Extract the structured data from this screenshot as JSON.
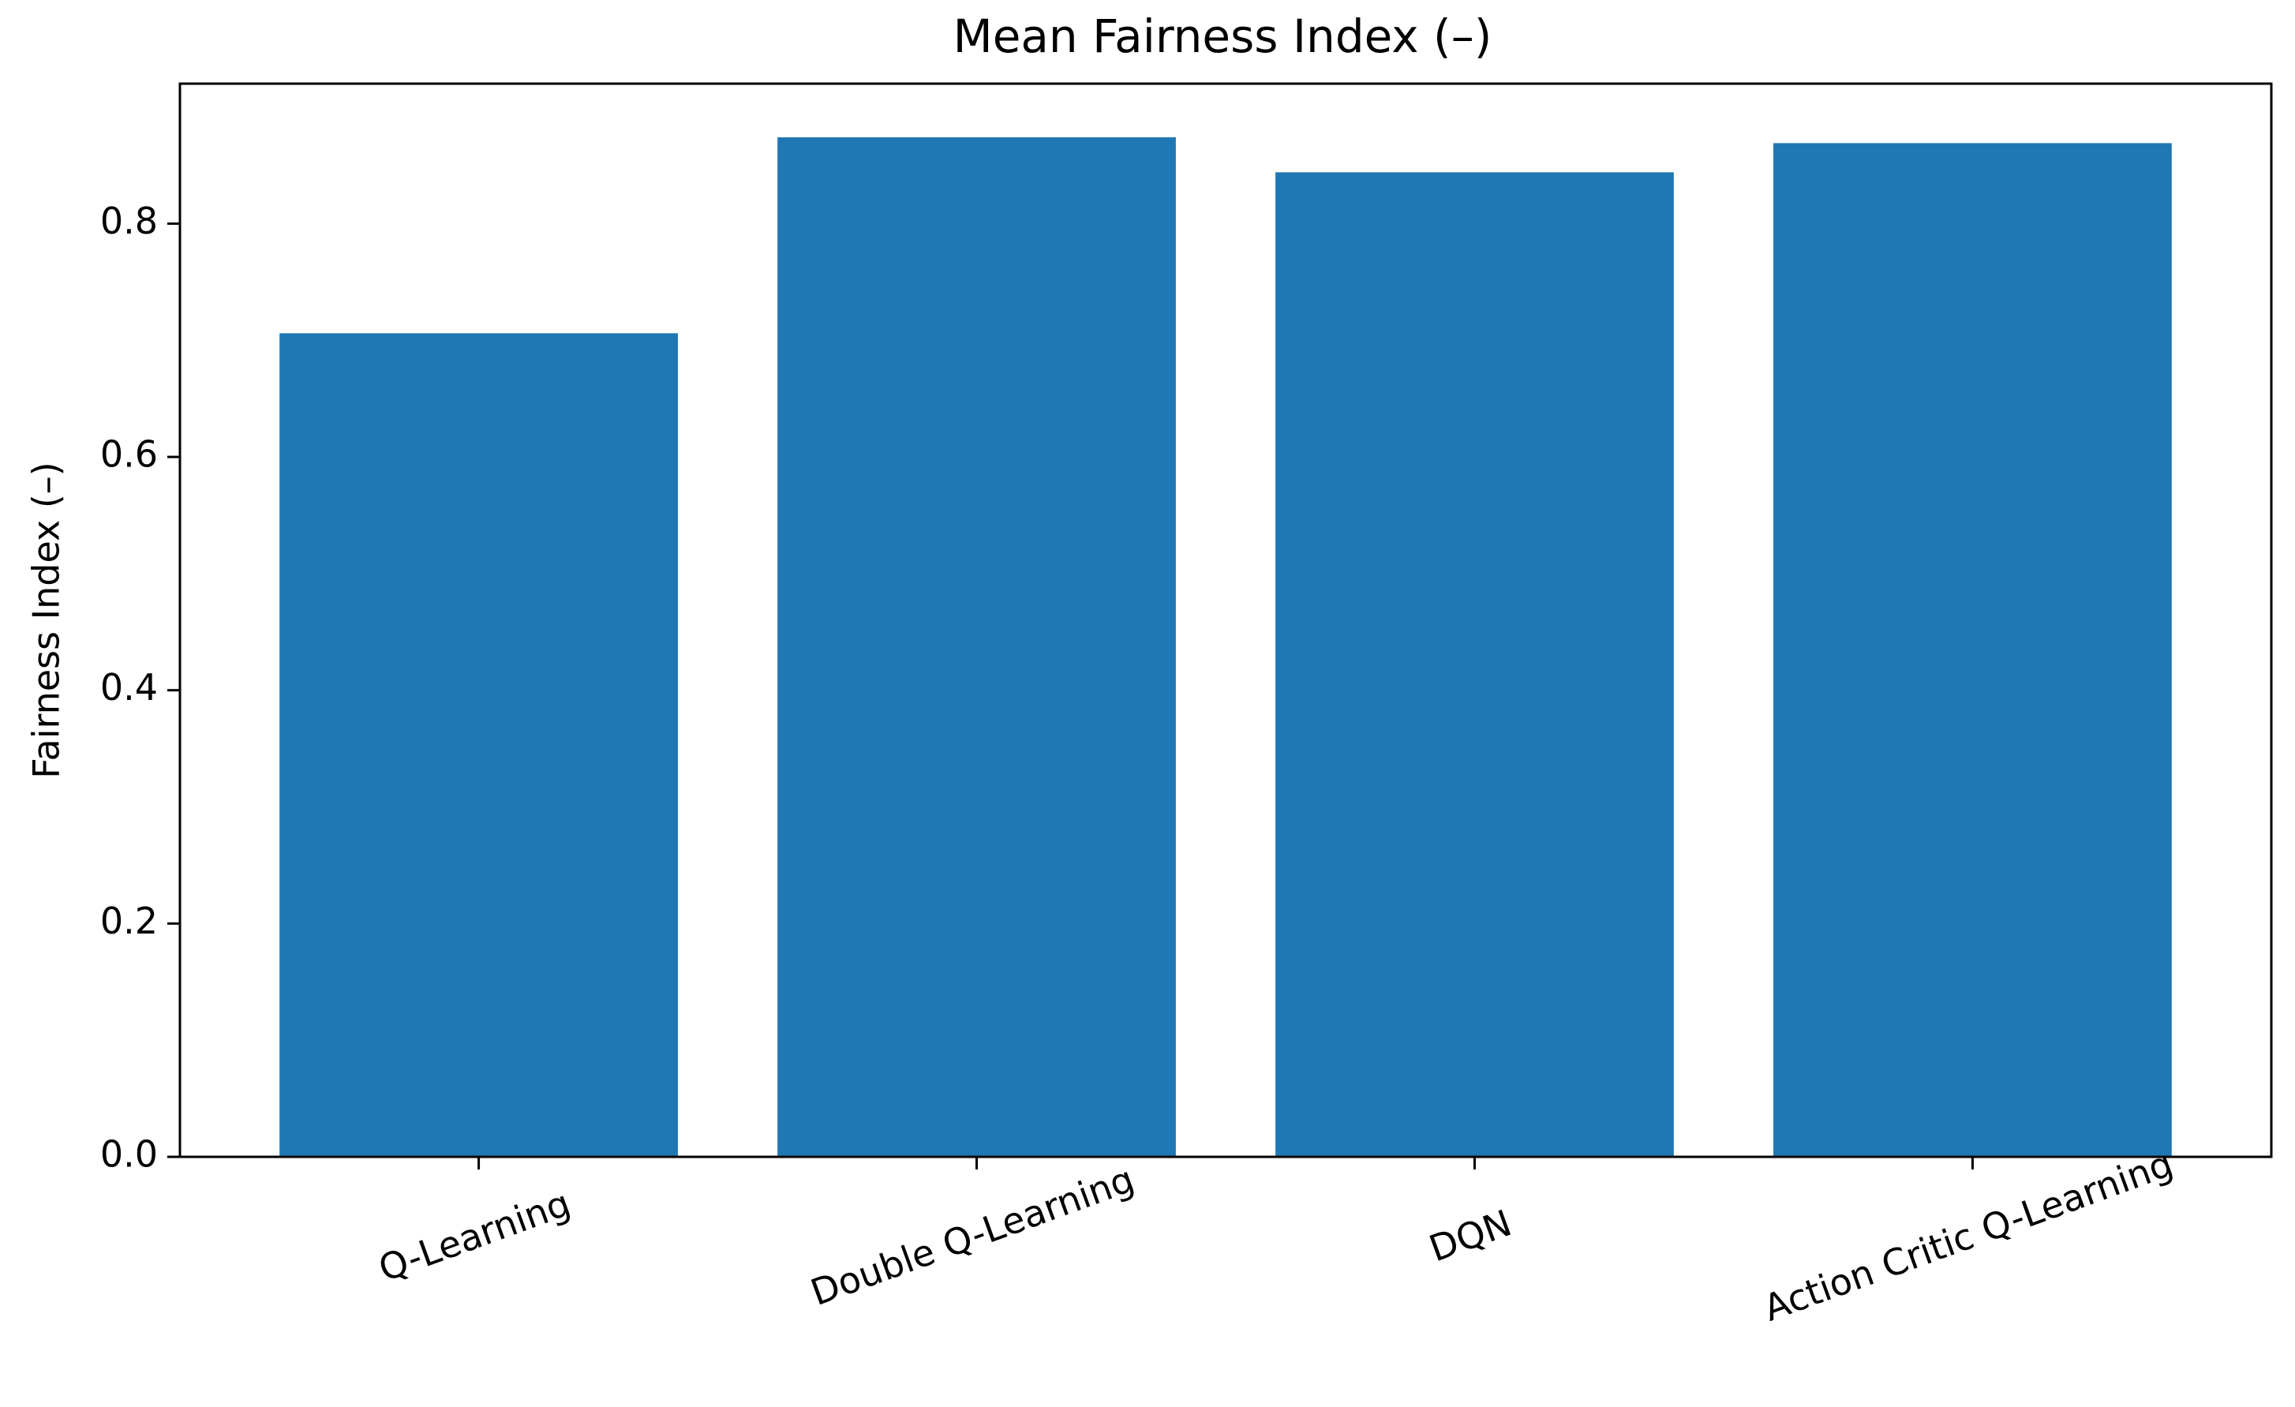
{
  "chart_data": {
    "type": "bar",
    "title": "Mean Fairness Index (–)",
    "xlabel": "",
    "ylabel": "Fairness Index (–)",
    "categories": [
      "Q-Learning",
      "Double Q-Learning",
      "DQN",
      "Action Critic Q-Learning"
    ],
    "values": [
      0.706,
      0.874,
      0.844,
      0.869
    ],
    "ylim": [
      0,
      0.92
    ],
    "yticks": [
      "0.0",
      "0.2",
      "0.4",
      "0.6",
      "0.8"
    ],
    "ytick_values": [
      0.0,
      0.2,
      0.4,
      0.6,
      0.8
    ],
    "xtick_rotation": "rotated",
    "grid": false,
    "legend": "none",
    "bar_color": "#1f77b4"
  }
}
